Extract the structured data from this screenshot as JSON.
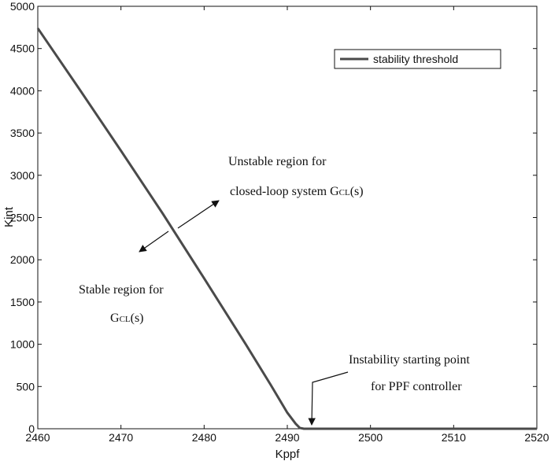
{
  "chart_data": {
    "type": "line",
    "xlabel": "Kppf",
    "ylabel": "Kint",
    "xlim": [
      2460,
      2520
    ],
    "ylim": [
      0,
      5000
    ],
    "x_ticks": [
      2460,
      2470,
      2480,
      2490,
      2500,
      2510,
      2520
    ],
    "y_ticks": [
      0,
      500,
      1000,
      1500,
      2000,
      2500,
      3000,
      3500,
      4000,
      4500,
      5000
    ],
    "grid": false,
    "legend_position": "top-right",
    "series": [
      {
        "name": "stability threshold",
        "color": "#4a4a4a",
        "x": [
          2460,
          2465,
          2470,
          2475,
          2480,
          2485,
          2488,
          2490,
          2491,
          2491.5,
          2492,
          2500,
          2510,
          2520
        ],
        "y": [
          4740,
          4020,
          3290,
          2550,
          1780,
          1000,
          520,
          190,
          60,
          10,
          0,
          0,
          0,
          0
        ]
      }
    ],
    "annotations": {
      "unstable": {
        "line1": "Unstable region for",
        "line2_prefix": "closed-loop system G",
        "line2_sub": "CL",
        "line2_suffix": "(s)"
      },
      "stable": {
        "line1": "Stable region for",
        "line2_prefix": "G",
        "line2_sub": "CL",
        "line2_suffix": "(s)"
      },
      "instability": {
        "line1": "Instability starting point",
        "line2": "for PPF controller"
      }
    }
  }
}
